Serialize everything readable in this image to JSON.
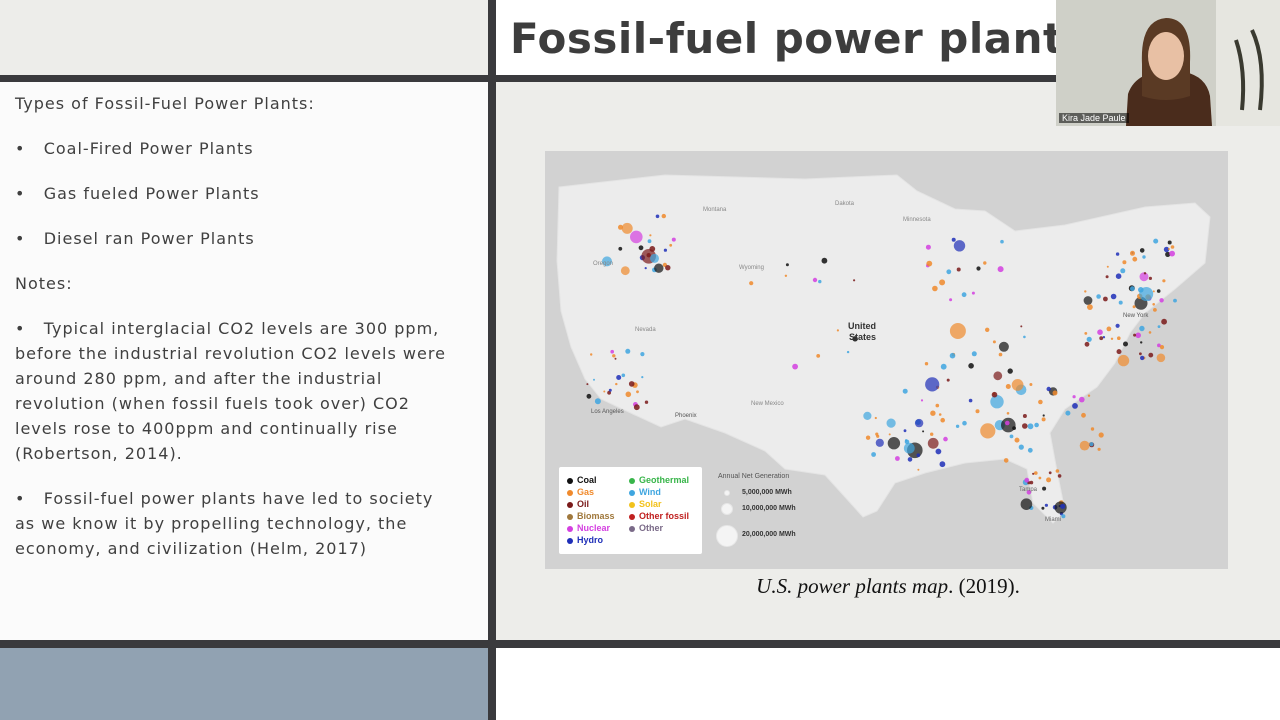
{
  "slide": {
    "title": "Fossil-fuel power plants",
    "types_heading": "Types of Fossil-Fuel Power Plants:",
    "types": [
      "Coal-Fired Power Plants",
      "Gas fueled Power Plants",
      "Diesel ran Power Plants"
    ],
    "notes_heading": "Notes:",
    "note1_lines": [
      "Typical interglacial CO2 levels are 300 ppm,",
      "before the industrial revolution CO2 levels were",
      "around 280 ppm, and after the industrial",
      "revolution (when fossil fuels took over) CO2",
      "levels rose to 400ppm and continually rise",
      "(Robertson, 2014)."
    ],
    "note2_lines": [
      "Fossil-fuel power plants have led to society",
      "as we know it by propelling technology, the",
      "economy, and civilization (Helm, 2017)"
    ],
    "bullet": "•",
    "caption_italic": "U.S. power plants map",
    "caption_rest": ". (2019)."
  },
  "map": {
    "labels": {
      "country": "United",
      "country2": "States",
      "new_york": "New York",
      "los_angeles": "Los Angeles",
      "phoenix": "Phoenix",
      "montana": "Montana",
      "wyoming": "Wyoming",
      "nevada": "Nevada",
      "oregon": "Oregon",
      "new_mexico": "New Mexico",
      "minnesota": "Minnesota",
      "dakota": "Dakota",
      "tampa": "Tampa",
      "miami": "Miami"
    },
    "legend": {
      "left": [
        {
          "label": "Coal",
          "color": "#111111"
        },
        {
          "label": "Gas",
          "color": "#f08a2c"
        },
        {
          "label": "Oil",
          "color": "#7a1a1a"
        },
        {
          "label": "Biomass",
          "color": "#a0783c"
        },
        {
          "label": "Nuclear",
          "color": "#d43fe0"
        },
        {
          "label": "Hydro",
          "color": "#1f2fb8"
        }
      ],
      "right": [
        {
          "label": "Geothermal",
          "color": "#38b54a"
        },
        {
          "label": "Wind",
          "color": "#3fa6e0"
        },
        {
          "label": "Solar",
          "color": "#f2c21c"
        },
        {
          "label": "Other fossil",
          "color": "#c0201f"
        },
        {
          "label": "Other",
          "color": "#7a6a88"
        }
      ],
      "size_title": "Annual Net Generation",
      "sizes": [
        "5,000,000 MWh",
        "10,000,000 MWh",
        "20,000,000 MWh"
      ]
    }
  },
  "webcam": {
    "name": "Kira Jade Paule"
  }
}
